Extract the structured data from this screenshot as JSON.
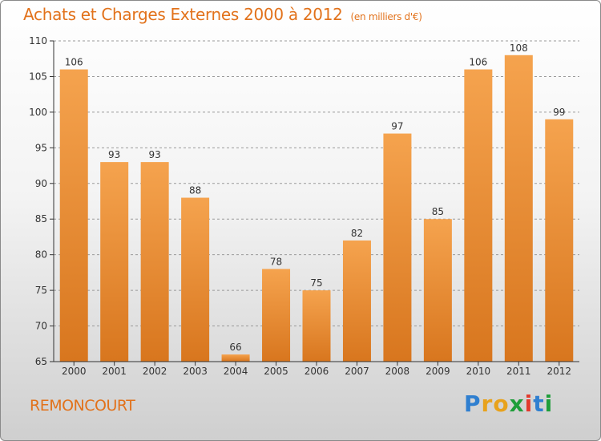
{
  "title": "Achats et Charges Externes 2000 à 2012",
  "subtitle": "(en milliers d'€)",
  "commune": "REMONCOURT",
  "logo": {
    "text": "Proxiti",
    "letters": [
      "P",
      "r",
      "o",
      "x",
      "i",
      "t",
      "i"
    ],
    "colors": [
      "#2f7fd0",
      "#e8a21c",
      "#e8a21c",
      "#1f9e3a",
      "#e23b2e",
      "#2f7fd0",
      "#1f9e3a"
    ]
  },
  "colors": {
    "bar_light": "#f5a34e",
    "bar_dark": "#d8761e",
    "accent": "#e2721b",
    "axis": "#333333",
    "grid": "#9a9a9a"
  },
  "chart_data": {
    "type": "bar",
    "title": "Achats et Charges Externes 2000 à 2012",
    "subtitle": "(en milliers d'€)",
    "categories": [
      "2000",
      "2001",
      "2002",
      "2003",
      "2004",
      "2005",
      "2006",
      "2007",
      "2008",
      "2009",
      "2010",
      "2011",
      "2012"
    ],
    "values": [
      106,
      93,
      93,
      88,
      66,
      78,
      75,
      82,
      97,
      85,
      106,
      108,
      99
    ],
    "ylim": [
      65,
      110
    ],
    "yticks": [
      65,
      70,
      75,
      80,
      85,
      90,
      95,
      100,
      105,
      110
    ],
    "grid": "horizontal-dashed",
    "data_labels": true
  }
}
